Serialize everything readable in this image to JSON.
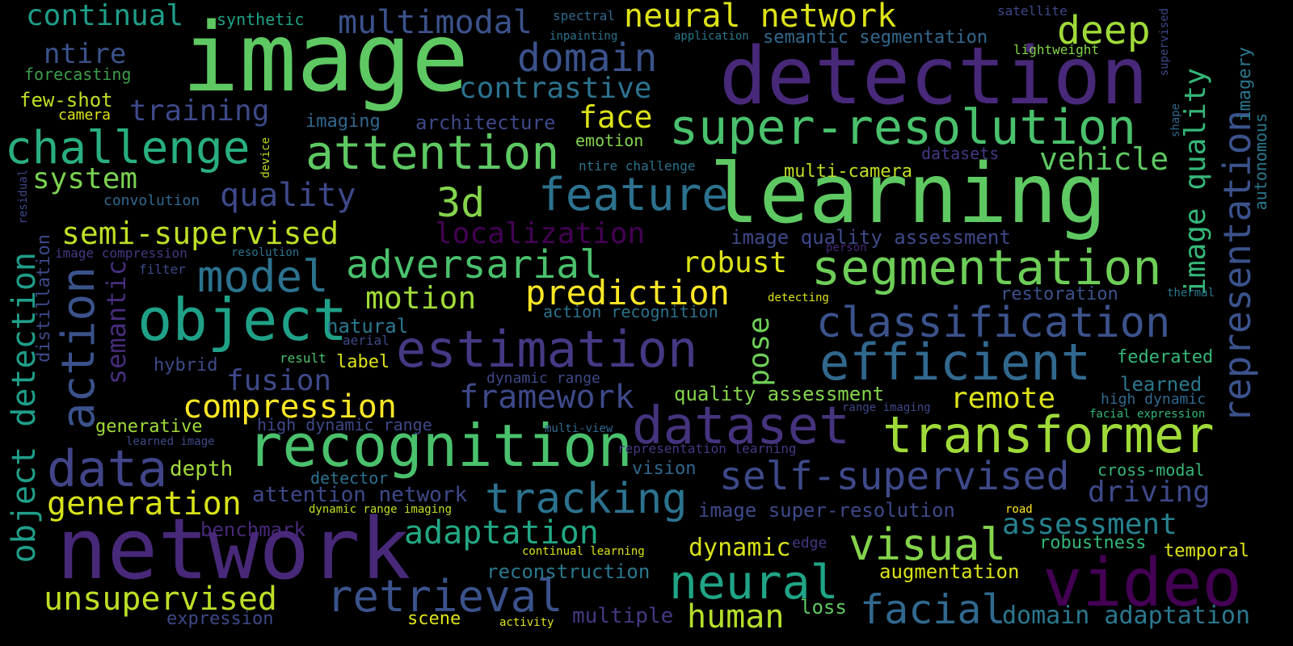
{
  "words": [
    {
      "text": "image",
      "color": "#5ec962"
    },
    {
      "text": "detection",
      "color": "#482878"
    },
    {
      "text": "learning",
      "color": "#5ec962"
    },
    {
      "text": "network",
      "color": "#482878"
    },
    {
      "text": "recognition",
      "color": "#4ac16d"
    },
    {
      "text": "video",
      "color": "#440154"
    },
    {
      "text": "object",
      "color": "#1fa187"
    },
    {
      "text": "super-resolution",
      "color": "#4ac16d"
    },
    {
      "text": "estimation",
      "color": "#443983"
    },
    {
      "text": "transformer",
      "color": "#a0da39"
    },
    {
      "text": "segmentation",
      "color": "#6ece58"
    },
    {
      "text": "dataset",
      "color": "#46337e"
    },
    {
      "text": "attention",
      "color": "#5ec962"
    },
    {
      "text": "efficient",
      "color": "#31688e"
    },
    {
      "text": "challenge",
      "color": "#29af7f"
    },
    {
      "text": "classification",
      "color": "#3b528b"
    },
    {
      "text": "action",
      "color": "#3b528b"
    },
    {
      "text": "feature",
      "color": "#2c728e"
    },
    {
      "text": "data",
      "color": "#414487"
    },
    {
      "text": "neural",
      "color": "#20a486"
    },
    {
      "text": "model",
      "color": "#2c728e"
    },
    {
      "text": "retrieval",
      "color": "#3b528b"
    },
    {
      "text": "visual",
      "color": "#84d44b"
    },
    {
      "text": "self-supervised",
      "color": "#3e4989"
    },
    {
      "text": "representation",
      "color": "#3b528b"
    },
    {
      "text": "tracking",
      "color": "#2c728e"
    },
    {
      "text": "facial",
      "color": "#31688e"
    },
    {
      "text": "adversarial",
      "color": "#4ac16d"
    },
    {
      "text": "compression",
      "color": "#fde725"
    },
    {
      "text": "domain",
      "color": "#3b528b"
    },
    {
      "text": "deep",
      "color": "#a0da39"
    },
    {
      "text": "multimodal",
      "color": "#3b528b"
    },
    {
      "text": "neural network",
      "color": "#dde318"
    },
    {
      "text": "3d",
      "color": "#84d44b"
    },
    {
      "text": "quality",
      "color": "#3e4989"
    },
    {
      "text": "unsupervised",
      "color": "#bddf26"
    },
    {
      "text": "adaptation",
      "color": "#22a884"
    },
    {
      "text": "object detection",
      "color": "#1f9e89"
    },
    {
      "text": "prediction",
      "color": "#fde725"
    },
    {
      "text": "framework",
      "color": "#3e4989"
    },
    {
      "text": "generation",
      "color": "#d8e219"
    },
    {
      "text": "human",
      "color": "#b5de2b"
    },
    {
      "text": "semi-supervised",
      "color": "#bddf26"
    },
    {
      "text": "image quality",
      "color": "#35b779"
    },
    {
      "text": "contrastive",
      "color": "#2c728e"
    },
    {
      "text": "continual",
      "color": "#1f9e89"
    },
    {
      "text": "training",
      "color": "#3e4989"
    },
    {
      "text": "system",
      "color": "#7ad151"
    },
    {
      "text": "motion",
      "color": "#a0da39"
    },
    {
      "text": "robust",
      "color": "#dde318"
    },
    {
      "text": "localization",
      "color": "#440154"
    },
    {
      "text": "fusion",
      "color": "#3e4989"
    },
    {
      "text": "assessment",
      "color": "#26828e"
    },
    {
      "text": "driving",
      "color": "#3e4989"
    },
    {
      "text": "domain adaptation",
      "color": "#2a788e"
    },
    {
      "text": "face",
      "color": "#dde318"
    },
    {
      "text": "vehicle",
      "color": "#5ec962"
    },
    {
      "text": "remote",
      "color": "#dde318"
    },
    {
      "text": "pose",
      "color": "#6ece58"
    },
    {
      "text": "semantic",
      "color": "#472d7b"
    },
    {
      "text": "dynamic",
      "color": "#d8e219"
    },
    {
      "text": "ntire",
      "color": "#3b528b"
    },
    {
      "text": "image super-resolution",
      "color": "#3e4989"
    },
    {
      "text": "image quality assessment",
      "color": "#3e4989"
    },
    {
      "text": "quality assessment",
      "color": "#84d44b"
    },
    {
      "text": "augmentation",
      "color": "#d8e219"
    },
    {
      "text": "depth",
      "color": "#a0da39"
    },
    {
      "text": "multi-camera",
      "color": "#c0df25"
    },
    {
      "text": "attention network",
      "color": "#3e4989"
    },
    {
      "text": "reconstruction",
      "color": "#2a788e"
    },
    {
      "text": "natural",
      "color": "#2a788e"
    },
    {
      "text": "distillation",
      "color": "#3e4989"
    },
    {
      "text": "architecture",
      "color": "#3e4989"
    },
    {
      "text": "imaging",
      "color": "#31688e"
    },
    {
      "text": "semantic segmentation",
      "color": "#31688e"
    },
    {
      "text": "few-shot",
      "color": "#c0df25"
    },
    {
      "text": "forecasting",
      "color": "#3e9e4a"
    },
    {
      "text": "label",
      "color": "#dde318"
    },
    {
      "text": "loss",
      "color": "#5ec962"
    },
    {
      "text": "multiple",
      "color": "#443983"
    },
    {
      "text": "benchmark",
      "color": "#482878"
    },
    {
      "text": "vision",
      "color": "#31688e"
    },
    {
      "text": "temporal",
      "color": "#dde318"
    },
    {
      "text": "learned",
      "color": "#2a788e"
    },
    {
      "text": "restoration",
      "color": "#3b528b"
    },
    {
      "text": "robustness",
      "color": "#35b779"
    },
    {
      "text": "federated",
      "color": "#35b779"
    },
    {
      "text": "cross-modal",
      "color": "#35b779"
    },
    {
      "text": "scene",
      "color": "#dde318"
    },
    {
      "text": "expression",
      "color": "#3e4989"
    },
    {
      "text": "generative",
      "color": "#a0da39"
    },
    {
      "text": "high dynamic range",
      "color": "#3e4989"
    },
    {
      "text": "detector",
      "color": "#2c728e"
    },
    {
      "text": "hybrid",
      "color": "#3e4989"
    },
    {
      "text": "emotion",
      "color": "#84d44b"
    },
    {
      "text": "camera",
      "color": "#dde318"
    },
    {
      "text": "synthetic",
      "color": "#1fa187"
    },
    {
      "text": "spectral",
      "color": "#31688e"
    },
    {
      "text": "inpainting",
      "color": "#2c728e"
    },
    {
      "text": "application",
      "color": "#2a788e"
    },
    {
      "text": "satellite",
      "color": "#3e4989"
    },
    {
      "text": "lightweight",
      "color": "#84d44b"
    },
    {
      "text": "supervised",
      "color": "#3e4989"
    },
    {
      "text": "imagery",
      "color": "#2a788e"
    },
    {
      "text": "autonomous",
      "color": "#2a788e"
    },
    {
      "text": "shape",
      "color": "#31688e"
    },
    {
      "text": "datasets",
      "color": "#443983"
    },
    {
      "text": "ntire challenge",
      "color": "#2c728e"
    },
    {
      "text": "convolution",
      "color": "#31688e"
    },
    {
      "text": "device",
      "color": "#bddf26"
    },
    {
      "text": "residual",
      "color": "#3e4989"
    },
    {
      "text": "image compression",
      "color": "#443983"
    },
    {
      "text": "resolution",
      "color": "#2c728e"
    },
    {
      "text": "filter",
      "color": "#3e4989"
    },
    {
      "text": "person",
      "color": "#482878"
    },
    {
      "text": "detecting",
      "color": "#dde318"
    },
    {
      "text": "thermal",
      "color": "#2a788e"
    },
    {
      "text": "action recognition",
      "color": "#2c728e"
    },
    {
      "text": "aerial",
      "color": "#3e4989"
    },
    {
      "text": "result",
      "color": "#4ac16d"
    },
    {
      "text": "dynamic range",
      "color": "#3e4989"
    },
    {
      "text": "high dynamic",
      "color": "#31688e"
    },
    {
      "text": "range imaging",
      "color": "#3e4989"
    },
    {
      "text": "facial expression",
      "color": "#35b779"
    },
    {
      "text": "multi-view",
      "color": "#31688e"
    },
    {
      "text": "learned image",
      "color": "#3e4989"
    },
    {
      "text": "representation learning",
      "color": "#443983"
    },
    {
      "text": "dynamic range imaging",
      "color": "#c0df25"
    },
    {
      "text": "road",
      "color": "#fde725"
    },
    {
      "text": "edge",
      "color": "#443983"
    },
    {
      "text": "continual learning",
      "color": "#dde318"
    },
    {
      "text": "activity",
      "color": "#dde318"
    }
  ]
}
